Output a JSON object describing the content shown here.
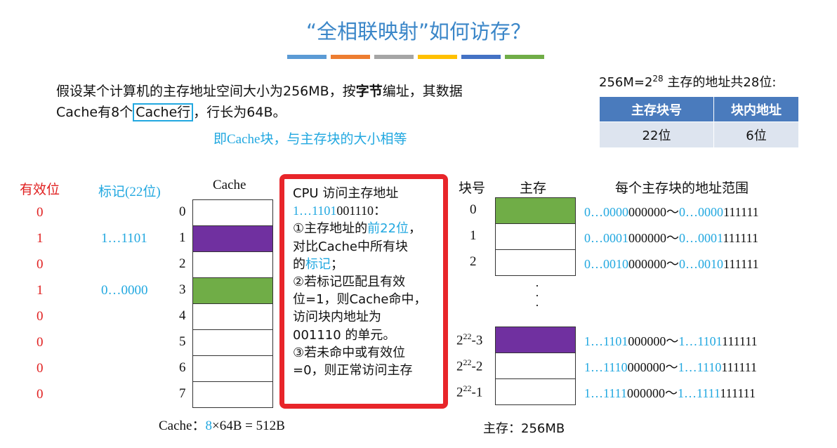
{
  "title": "“全相联映射”如何访存？",
  "deco_colors": [
    "#5b9bd5",
    "#ed7d31",
    "#a5a5a5",
    "#ffc000",
    "#4472c4",
    "#70ad47"
  ],
  "intro": {
    "part1": "假设某个计算机的主存地址空间大小为256MB，按",
    "bold": "字节",
    "part2": "编址，其数据Cache有8个",
    "boxed": "Cache行",
    "part3": "，行长为64B。"
  },
  "note": "即Cache块，与主存块的大小相等",
  "addr_info": {
    "prefix": "256M=2",
    "exp": "28",
    "suffix": " 主存的地址共28位:"
  },
  "addr_table": {
    "headers": [
      "主存块号",
      "块内地址"
    ],
    "values": [
      "22位",
      "6位"
    ]
  },
  "cache": {
    "valid_header": "有效位",
    "tag_header": "标记(22位)",
    "cache_header": "Cache",
    "lines": [
      {
        "index": "0",
        "valid": "0",
        "tag": "",
        "color": "#ffffff"
      },
      {
        "index": "1",
        "valid": "1",
        "tag": "1…1101",
        "color": "#7030a0"
      },
      {
        "index": "2",
        "valid": "0",
        "tag": "",
        "color": "#ffffff"
      },
      {
        "index": "3",
        "valid": "1",
        "tag": "0…0000",
        "color": "#70ad47"
      },
      {
        "index": "4",
        "valid": "0",
        "tag": "",
        "color": "#ffffff"
      },
      {
        "index": "5",
        "valid": "0",
        "tag": "",
        "color": "#ffffff"
      },
      {
        "index": "6",
        "valid": "0",
        "tag": "",
        "color": "#ffffff"
      },
      {
        "index": "7",
        "valid": "0",
        "tag": "",
        "color": "#ffffff"
      }
    ],
    "caption_prefix": "Cache：",
    "caption_num": "8",
    "caption_rest": "×64B = 512B"
  },
  "cpu": {
    "l1": "CPU 访问主存地址",
    "l2a": "1…1101",
    "l2b": "001110：",
    "l3a": "①主存地址的",
    "l3b": "前22位",
    "l3c": "，",
    "l4": "对比Cache中所有块",
    "l5a": "的",
    "l5b": "标记",
    "l5c": "；",
    "l6": "②若标记匹配且有效",
    "l7": "位=1，则Cache命中，",
    "l8": "访问块内地址为",
    "l9": "001110 的单元。",
    "l10": "③若未命中或有效位",
    "l11": "=0，则正常访问主存"
  },
  "memory": {
    "blocknum_header": "块号",
    "mem_header": "主存",
    "range_header": "每个主存块的地址范围",
    "dots": "·\n·\n·",
    "blocks": [
      {
        "num": "0",
        "sup": "",
        "suf": "",
        "color": "#70ad47",
        "r1a": "0…0000",
        "r1b": "000000",
        "sep": "～",
        "r2a": "0…0000",
        "r2b": "111111"
      },
      {
        "num": "1",
        "sup": "",
        "suf": "",
        "color": "#ffffff",
        "r1a": "0…0001",
        "r1b": "000000",
        "sep": "～",
        "r2a": "0…0001",
        "r2b": "111111"
      },
      {
        "num": "2",
        "sup": "",
        "suf": "",
        "color": "#ffffff",
        "r1a": "0…0010",
        "r1b": "000000",
        "sep": "～",
        "r2a": "0…0010",
        "r2b": "111111"
      },
      {
        "num": "2",
        "sup": "22",
        "suf": "-3",
        "color": "#7030a0",
        "r1a": "1…1101",
        "r1b": "000000",
        "sep": "～",
        "r2a": "1…1101",
        "r2b": "111111"
      },
      {
        "num": "2",
        "sup": "22",
        "suf": "-2",
        "color": "#ffffff",
        "r1a": "1…1110",
        "r1b": "000000",
        "sep": "～",
        "r2a": "1…1110",
        "r2b": "111111"
      },
      {
        "num": "2",
        "sup": "22",
        "suf": "-1",
        "color": "#ffffff",
        "r1a": "1…1111",
        "r1b": "000000",
        "sep": "～",
        "r2a": "1…1111",
        "r2b": "111111"
      }
    ],
    "caption": "主存：256MB"
  }
}
